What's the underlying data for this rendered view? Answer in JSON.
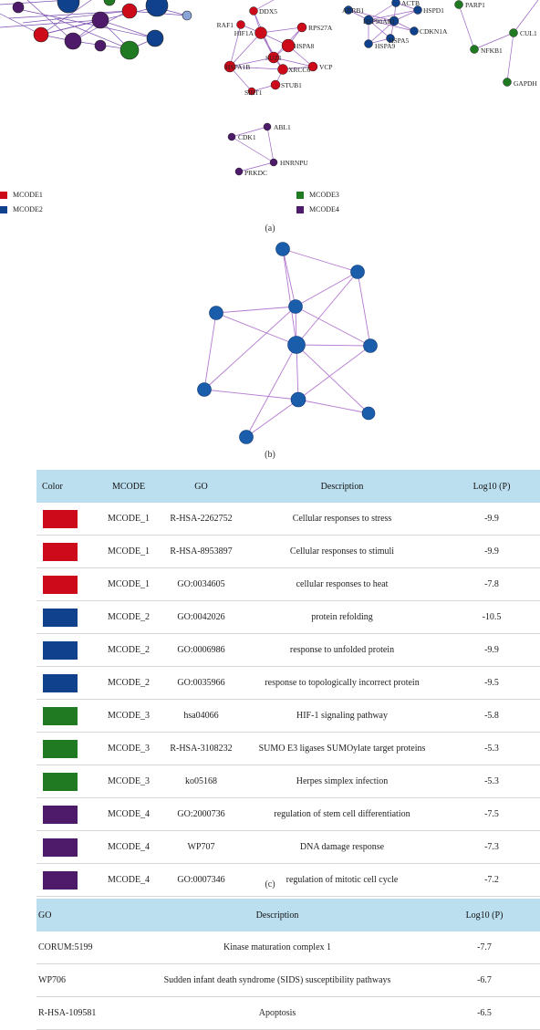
{
  "figure_a": {
    "colors": {
      "MCODE1": "#cc0a1a",
      "MCODE2": "#10418c",
      "MCODE3": "#1f7a22",
      "MCODE4": "#4e1b6b",
      "edge": "#9a64c2"
    },
    "cluster1_labels": [
      "DDX5",
      "RAF1",
      "HIF1A",
      "RPS27A",
      "HSPA8",
      "SUZ1",
      "XRCC6",
      "HSPA1B",
      "VCP",
      "SIRT1",
      "STUB1"
    ],
    "cluster2_labels": [
      "ACTB",
      "ARRB1",
      "HSPD1",
      "HSP90AB1",
      "CDKN1A",
      "HSPA5",
      "HSPA9"
    ],
    "cluster3_labels": [
      "PARP1",
      "CUL1",
      "NFKB1",
      "GAPDH"
    ],
    "cluster4_labels": [
      "ABL1",
      "CDK1",
      "HNRNPU",
      "PRKDC"
    ],
    "legend": [
      "MCODE1",
      "MCODE2",
      "MCODE3",
      "MCODE4"
    ],
    "caption": "(a)"
  },
  "figure_b": {
    "node_color": "#1a5dab",
    "caption": "(b)"
  },
  "table_c": {
    "headers": [
      "Color",
      "MCODE",
      "GO",
      "Description",
      "Log10 (P)"
    ],
    "rows": [
      {
        "color": "#cc0a1a",
        "mcode": "MCODE_1",
        "go": "R-HSA-2262752",
        "desc": "Cellular responses to stress",
        "p": "-9.9"
      },
      {
        "color": "#cc0a1a",
        "mcode": "MCODE_1",
        "go": "R-HSA-8953897",
        "desc": "Cellular responses to stimuli",
        "p": "-9.9"
      },
      {
        "color": "#cc0a1a",
        "mcode": "MCODE_1",
        "go": "GO:0034605",
        "desc": "cellular responses to heat",
        "p": "-7.8"
      },
      {
        "color": "#10418c",
        "mcode": "MCODE_2",
        "go": "GO:0042026",
        "desc": "protein refolding",
        "p": "-10.5"
      },
      {
        "color": "#10418c",
        "mcode": "MCODE_2",
        "go": "GO:0006986",
        "desc": "response to unfolded protein",
        "p": "-9.9"
      },
      {
        "color": "#10418c",
        "mcode": "MCODE_2",
        "go": "GO:0035966",
        "desc": "response to topologically incorrect protein",
        "p": "-9.5"
      },
      {
        "color": "#1f7a22",
        "mcode": "MCODE_3",
        "go": "hsa04066",
        "desc": "HIF-1 signaling pathway",
        "p": "-5.8"
      },
      {
        "color": "#1f7a22",
        "mcode": "MCODE_3",
        "go": "R-HSA-3108232",
        "desc": "SUMO E3 ligases SUMOylate target proteins",
        "p": "-5.3"
      },
      {
        "color": "#1f7a22",
        "mcode": "MCODE_3",
        "go": "ko05168",
        "desc": "Herpes simplex infection",
        "p": "-5.3"
      },
      {
        "color": "#4e1b6b",
        "mcode": "MCODE_4",
        "go": "GO:2000736",
        "desc": "regulation of stem cell differentiation",
        "p": "-7.5"
      },
      {
        "color": "#4e1b6b",
        "mcode": "MCODE_4",
        "go": "WP707",
        "desc": "DNA damage response",
        "p": "-7.3"
      },
      {
        "color": "#4e1b6b",
        "mcode": "MCODE_4",
        "go": "GO:0007346",
        "desc": "regulation of mitotic cell cycle",
        "p": "-7.2"
      }
    ],
    "caption": "(c)"
  },
  "table_d": {
    "headers": [
      "GO",
      "Description",
      "Log10 (P)"
    ],
    "rows": [
      {
        "go": "CORUM:5199",
        "desc": "Kinase maturation complex 1",
        "p": "-7.7"
      },
      {
        "go": "WP706",
        "desc": "Sudden infant death syndrome (SIDS) susceptibility pathways",
        "p": "-6.7"
      },
      {
        "go": "R-HSA-109581",
        "desc": "Apoptosis",
        "p": "-6.5"
      }
    ]
  }
}
